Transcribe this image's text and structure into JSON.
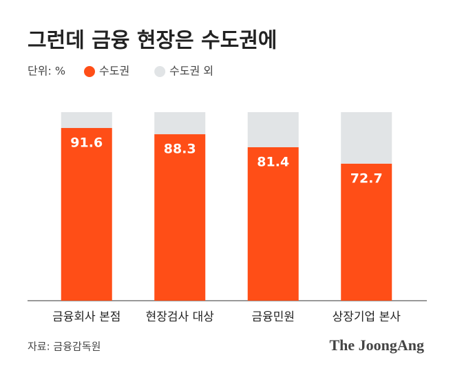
{
  "chart_data": {
    "type": "stacked_bar",
    "title": "그런데 금융 현장은 수도권에",
    "unit": "단위: %",
    "categories": [
      "금융회사 본점",
      "현장검사 대상",
      "금융민원",
      "상장기업 본사"
    ],
    "series": [
      {
        "name": "수도권",
        "color": "#ff4e17",
        "values": [
          91.6,
          88.3,
          81.4,
          72.7
        ]
      },
      {
        "name": "수도권 외",
        "color": "#e1e4e6",
        "values": [
          8.4,
          11.7,
          18.6,
          27.3
        ]
      }
    ],
    "ylim": [
      0,
      100
    ],
    "source": "자료: 금융감독원",
    "brand": "The JoongAng"
  }
}
